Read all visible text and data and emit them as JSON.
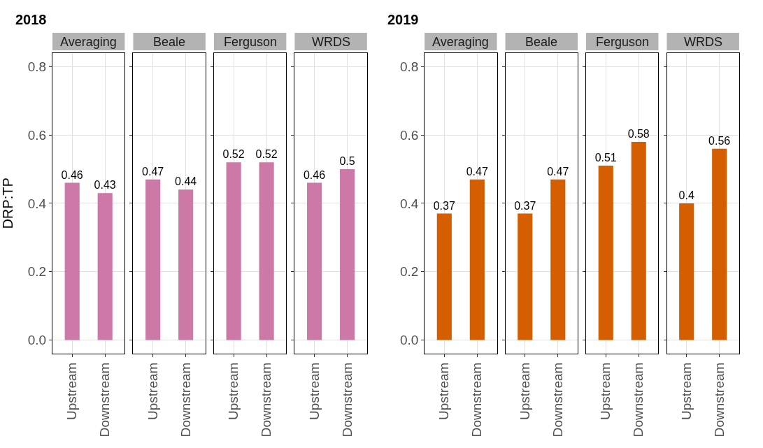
{
  "chart_data": [
    {
      "type": "bar",
      "title": "Averaging",
      "annotations": [
        "2018"
      ],
      "ylabel": "DRP:TP",
      "categories": [
        "Upstream",
        "Downstream"
      ],
      "values": [
        0.46,
        0.43
      ],
      "color": "#cc79a7",
      "ylim": [
        -0.04,
        0.84
      ],
      "yticks": [
        {
          "value": 0,
          "label": "0.0"
        },
        0.2,
        0.4,
        0.6,
        0.8
      ],
      "grid": true,
      "data_labels": true
    },
    {
      "type": "bar",
      "title": "Beale",
      "categories": [
        "Upstream",
        "Downstream"
      ],
      "values": [
        0.47,
        0.44
      ],
      "color": "#cc79a7",
      "ylim": [
        -0.04,
        0.84
      ],
      "yticks": [
        0,
        0.2,
        0.4,
        0.6,
        0.8
      ],
      "grid": true,
      "data_labels": true,
      "tick_labels": "x"
    },
    {
      "type": "bar",
      "title": "Ferguson",
      "categories": [
        "Upstream",
        "Downstream"
      ],
      "values": [
        0.52,
        0.52
      ],
      "color": "#cc79a7",
      "ylim": [
        -0.04,
        0.84
      ],
      "yticks": [
        0,
        0.2,
        0.4,
        0.6,
        0.8
      ],
      "grid": true,
      "data_labels": true,
      "tick_labels": "x"
    },
    {
      "type": "bar",
      "title": "WRDS",
      "categories": [
        "Upstream",
        "Downstream"
      ],
      "values": [
        0.46,
        0.5
      ],
      "color": "#cc79a7",
      "ylim": [
        -0.04,
        0.84
      ],
      "yticks": [
        0,
        0.2,
        0.4,
        0.6,
        0.8
      ],
      "grid": true,
      "data_labels": true,
      "tick_labels": "x"
    },
    {
      "type": "bar",
      "title": "Averaging",
      "annotations": [
        "2019"
      ],
      "categories": [
        "Upstream",
        "Downstream"
      ],
      "values": [
        0.37,
        0.47
      ],
      "color": "#d55e00",
      "ylim": [
        -0.04,
        0.84
      ],
      "yticks": [
        {
          "value": 0,
          "label": "0.0"
        },
        0.2,
        0.4,
        0.6,
        0.8
      ],
      "grid": true,
      "data_labels": true
    },
    {
      "type": "bar",
      "title": "Beale",
      "categories": [
        "Upstream",
        "Downstream"
      ],
      "values": [
        0.37,
        0.47
      ],
      "color": "#d55e00",
      "ylim": [
        -0.04,
        0.84
      ],
      "yticks": [
        0,
        0.2,
        0.4,
        0.6,
        0.8
      ],
      "grid": true,
      "data_labels": true,
      "tick_labels": "x"
    },
    {
      "type": "bar",
      "title": "Ferguson",
      "categories": [
        "Upstream",
        "Downstream"
      ],
      "values": [
        0.51,
        0.58
      ],
      "color": "#d55e00",
      "ylim": [
        -0.04,
        0.84
      ],
      "yticks": [
        0,
        0.2,
        0.4,
        0.6,
        0.8
      ],
      "grid": true,
      "data_labels": true,
      "tick_labels": "x"
    },
    {
      "type": "bar",
      "title": "WRDS",
      "categories": [
        "Upstream",
        "Downstream"
      ],
      "values": [
        0.4,
        0.56
      ],
      "color": "#d55e00",
      "ylim": [
        -0.04,
        0.84
      ],
      "yticks": [
        0,
        0.2,
        0.4,
        0.6,
        0.8
      ],
      "grid": true,
      "data_labels": true,
      "tick_labels": "x"
    }
  ]
}
